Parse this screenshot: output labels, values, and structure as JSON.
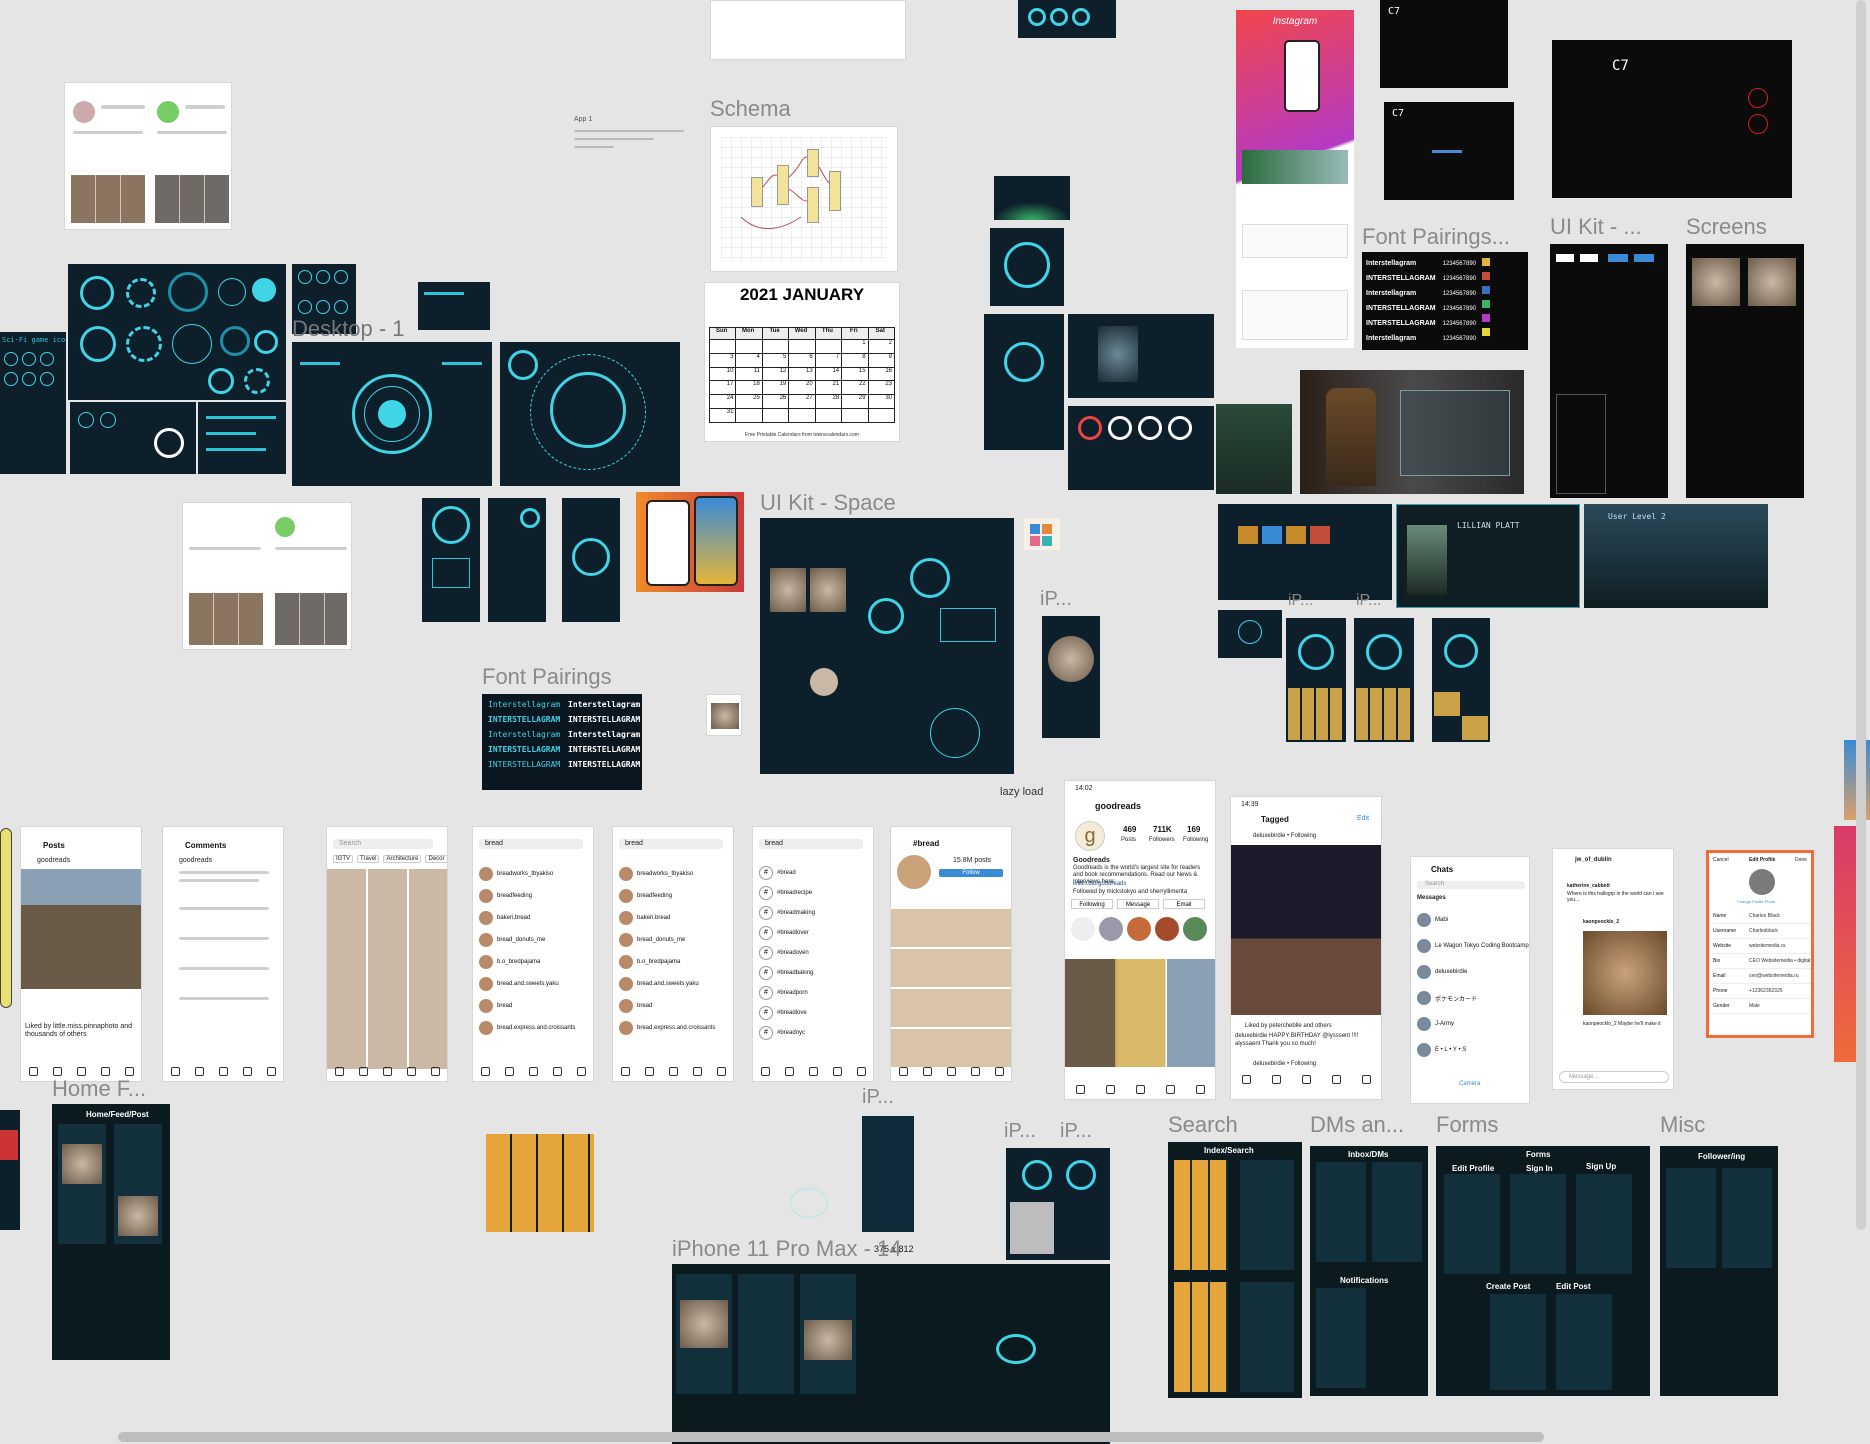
{
  "labels": {
    "schema": "Schema",
    "desktop": "Desktop - 1",
    "ui_kit_space": "UI Kit - Space",
    "font_pairings": "Font Pairings",
    "font_pairings_top": "Font Pairings...",
    "ui_kit_top": "UI Kit - ...",
    "screens": "Screens",
    "ip_mid": "iP...",
    "ip_a": "iP...",
    "ip_b": "iP...",
    "ip_c": "iP...",
    "ip_d": "iP...",
    "home_f": "Home F...",
    "search": "Search",
    "dms": "DMs an...",
    "forms": "Forms",
    "misc": "Misc",
    "iphone11": "iPhone 11 Pro Max - 14",
    "lazy_load": "lazy load",
    "dimensions": "375 x 812"
  },
  "calendar": {
    "title": "2021 JANUARY",
    "days": [
      "Sun",
      "Mon",
      "Tue",
      "Wed",
      "Thu",
      "Fri",
      "Sat"
    ],
    "cells": [
      "",
      "",
      "",
      "",
      "",
      "1",
      "2",
      "3",
      "4",
      "5",
      "6",
      "7",
      "8",
      "9",
      "10",
      "11",
      "12",
      "13",
      "14",
      "15",
      "16",
      "17",
      "18",
      "19",
      "20",
      "21",
      "22",
      "23",
      "24",
      "25",
      "26",
      "27",
      "28",
      "29",
      "30",
      "31",
      "",
      "",
      "",
      "",
      "",
      ""
    ],
    "footer": "Free Printable Calendars from townscalendars.com"
  },
  "font_pairing": {
    "lines": [
      "Interstellagram",
      "INTERSTELLAGRAM",
      "Interstellagram",
      "INTERSTELLAGRAM",
      "INTERSTELLAGRAM"
    ],
    "lines_right": [
      "Interstellagram",
      "INTERSTELLAGRAM",
      "Interstellagram",
      "INTERSTELLAGRAM",
      "INTERSTELLAGRAM"
    ],
    "numbers": [
      "1234567890",
      "1234567890",
      "1234567890",
      "1234567890",
      "1234567890",
      "1234567890"
    ]
  },
  "instagram_header": "Instagram",
  "c7": "C7",
  "profile": {
    "username": "goodreads",
    "posts": "469",
    "posts_label": "Posts",
    "followers": "711K",
    "followers_label": "Followers",
    "following": "169",
    "following_label": "Following",
    "bio_name": "Goodreads",
    "bio": "Goodreads is the world's largest site for readers and book recommendations. Read our News & Interviews here:",
    "link": "linkin.bio/goodreads",
    "followed_by": "Followed by mickstokyo and sherryllimenta",
    "btn_following": "Following",
    "btn_message": "Message",
    "btn_email": "Email",
    "time": "14:02"
  },
  "tagged": {
    "title": "Tagged",
    "edit": "Edit",
    "user": "deluxebirdie • Following",
    "liked_by": "Liked by petercheblle and others",
    "caption": "deluxebirdie HAPPY BIRTHDAY @lysssent !!!!",
    "reply": "alyssaent Thank you so much!",
    "user2": "deluxebirdie • Following",
    "time": "14:39"
  },
  "chats": {
    "title": "Chats",
    "search": "Search",
    "messages": "Messages",
    "camera": "Camera",
    "items": [
      "Mabi",
      "Le Wagon Tokyo Coding Bootcamp",
      "deluxebirdie",
      "ポケモンカード",
      "J-Army",
      "E • L • Y • S"
    ]
  },
  "dm": {
    "user": "jw_of_dublin",
    "reply_user": "katherine_cabbett",
    "reply_text": "Where is this hallogrp in the world can I see you...",
    "shared_user": "kaonpeocklo_2",
    "shared_caption": "kaonpeocklo_2 Maybe he'll make it",
    "message": "Message..."
  },
  "edit_profile": {
    "cancel": "Cancel",
    "title": "Edit Profile",
    "done": "Done",
    "change": "Change Profile Photo",
    "rows": [
      [
        "Name",
        "Charles Black"
      ],
      [
        "Username",
        "Charlesblack"
      ],
      [
        "Website",
        "websitemedia.ru"
      ],
      [
        "Bio",
        "CEO Websitemedia • digital"
      ],
      [
        "Email",
        "ceo@websitemedia.ru"
      ],
      [
        "Phone",
        "+12362352325"
      ],
      [
        "Gender",
        "Male"
      ]
    ],
    "pro": "Try Instagram Business Tools",
    "private": "Private Information"
  },
  "posts_screen": {
    "title": "Posts",
    "user": "goodreads",
    "caption": "Liked by little.miss.pinnaphoto and thousands of others"
  },
  "comments_screen": {
    "title": "Comments",
    "user": "goodreads"
  },
  "search_screen": {
    "placeholder": "Search",
    "tabs": [
      "IGTV",
      "Travel",
      "Architecture",
      "Decor"
    ]
  },
  "bread": {
    "query": "bread",
    "tabs": [
      "Top",
      "Accounts",
      "Tags",
      "Places"
    ],
    "accounts": [
      "breadworks_tbyakiso",
      "breadfeeding",
      "bakeri.bread",
      "bread_donuts_me",
      "b.o_bredpajama",
      "bread.and.sweets.yaku",
      "bread",
      "bread.express.and.croissants"
    ],
    "tags": [
      "#bread",
      "#breadrecipe",
      "#breadmaking",
      "#breadlover",
      "#breadoven",
      "#breadbaking",
      "#breadporn",
      "#breadlove",
      "#breadnyc"
    ],
    "hashtag_title": "#bread",
    "hashtag_count": "15.8M posts",
    "follow": "Follow"
  },
  "frames_dark": {
    "home_feed": "Home/Feed/Post",
    "index_search": "Index/Search",
    "inbox": "Inbox/DMs",
    "notifications": "Notifications",
    "forms": "Forms",
    "edit_profile": "Edit Profile",
    "sign_in": "Sign In",
    "sign_up": "Sign Up",
    "create_post": "Create Post",
    "edit_post": "Edit Post",
    "follower": "Follower/ing"
  },
  "schema_note": "App 1",
  "colors": {
    "canvas": "#e5e5e5",
    "hud_cyan": "#3fd4e6",
    "dark_panel": "#0d1f2b",
    "ig_gradient_a": "#f2464b",
    "ig_gradient_b": "#b53ac4"
  }
}
